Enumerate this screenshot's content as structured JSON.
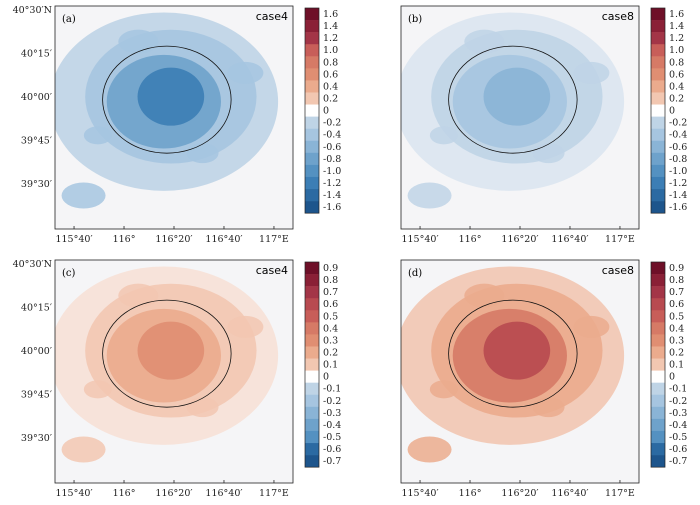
{
  "chart_data": [
    {
      "type": "heatmap",
      "panel_label": "(a)",
      "case_label": "case4",
      "x_ticks": [
        "115°40′",
        "116°",
        "116°20′",
        "116°40′",
        "117°E"
      ],
      "y_ticks": [
        "40°30′N",
        "40°15′",
        "40°00′",
        "39°45′",
        "39°30′"
      ],
      "colorbar_ticks": [
        "1.6",
        "1.4",
        "1.2",
        "1.0",
        "0.8",
        "0.6",
        "0.4",
        "0.2",
        "0",
        "-0.2",
        "-0.4",
        "-0.6",
        "-0.8",
        "-1.0",
        "-1.2",
        "-1.4",
        "-1.6"
      ],
      "vrange": [
        -1.6,
        1.6
      ],
      "center_value": -1.1
    },
    {
      "type": "heatmap",
      "panel_label": "(b)",
      "case_label": "case8",
      "x_ticks": [
        "115°40′",
        "116°",
        "116°20′",
        "116°40′",
        "117°E"
      ],
      "y_ticks": [],
      "colorbar_ticks": [
        "1.6",
        "1.4",
        "1.2",
        "1.0",
        "0.8",
        "0.6",
        "0.4",
        "0.2",
        "0",
        "-0.2",
        "-0.4",
        "-0.6",
        "-0.8",
        "-1.0",
        "-1.2",
        "-1.4",
        "-1.6"
      ],
      "vrange": [
        -1.6,
        1.6
      ],
      "center_value": -0.6
    },
    {
      "type": "heatmap",
      "panel_label": "(c)",
      "case_label": "case4",
      "x_ticks": [
        "115°40′",
        "116°",
        "116°20′",
        "116°40′",
        "117°E"
      ],
      "y_ticks": [
        "40°30′N",
        "40°15′",
        "40°00′",
        "39°45′",
        "39°30′"
      ],
      "colorbar_ticks": [
        "0.9",
        "0.8",
        "0.7",
        "0.6",
        "0.5",
        "0.4",
        "0.3",
        "0.2",
        "0.1",
        "0",
        "-0.1",
        "-0.2",
        "-0.3",
        "-0.4",
        "-0.5",
        "-0.6",
        "-0.7"
      ],
      "vrange": [
        -0.7,
        0.9
      ],
      "center_value": 0.35
    },
    {
      "type": "heatmap",
      "panel_label": "(d)",
      "case_label": "case8",
      "x_ticks": [
        "115°40′",
        "116°",
        "116°20′",
        "116°40′",
        "117°E"
      ],
      "y_ticks": [],
      "colorbar_ticks": [
        "0.9",
        "0.8",
        "0.7",
        "0.6",
        "0.5",
        "0.4",
        "0.3",
        "0.2",
        "0.1",
        "0",
        "-0.1",
        "-0.2",
        "-0.3",
        "-0.4",
        "-0.5",
        "-0.6",
        "-0.7"
      ],
      "vrange": [
        -0.7,
        0.9
      ],
      "center_value": 0.55
    }
  ],
  "colors": {
    "pos_ramp": [
      "#f7e1d6",
      "#f2c7b1",
      "#ebab8d",
      "#e08e72",
      "#d67a66",
      "#c85e59",
      "#b84a50",
      "#a33547",
      "#8a2036",
      "#6e1028"
    ],
    "neg_ramp": [
      "#dbe6f0",
      "#bfd4e6",
      "#a6c5e0",
      "#8ab4d6",
      "#6ea2cb",
      "#5491c1",
      "#3c7eb5",
      "#2b6aa2",
      "#1d558c"
    ],
    "background": "#f5f5f7",
    "neutral": "#ffffff"
  }
}
